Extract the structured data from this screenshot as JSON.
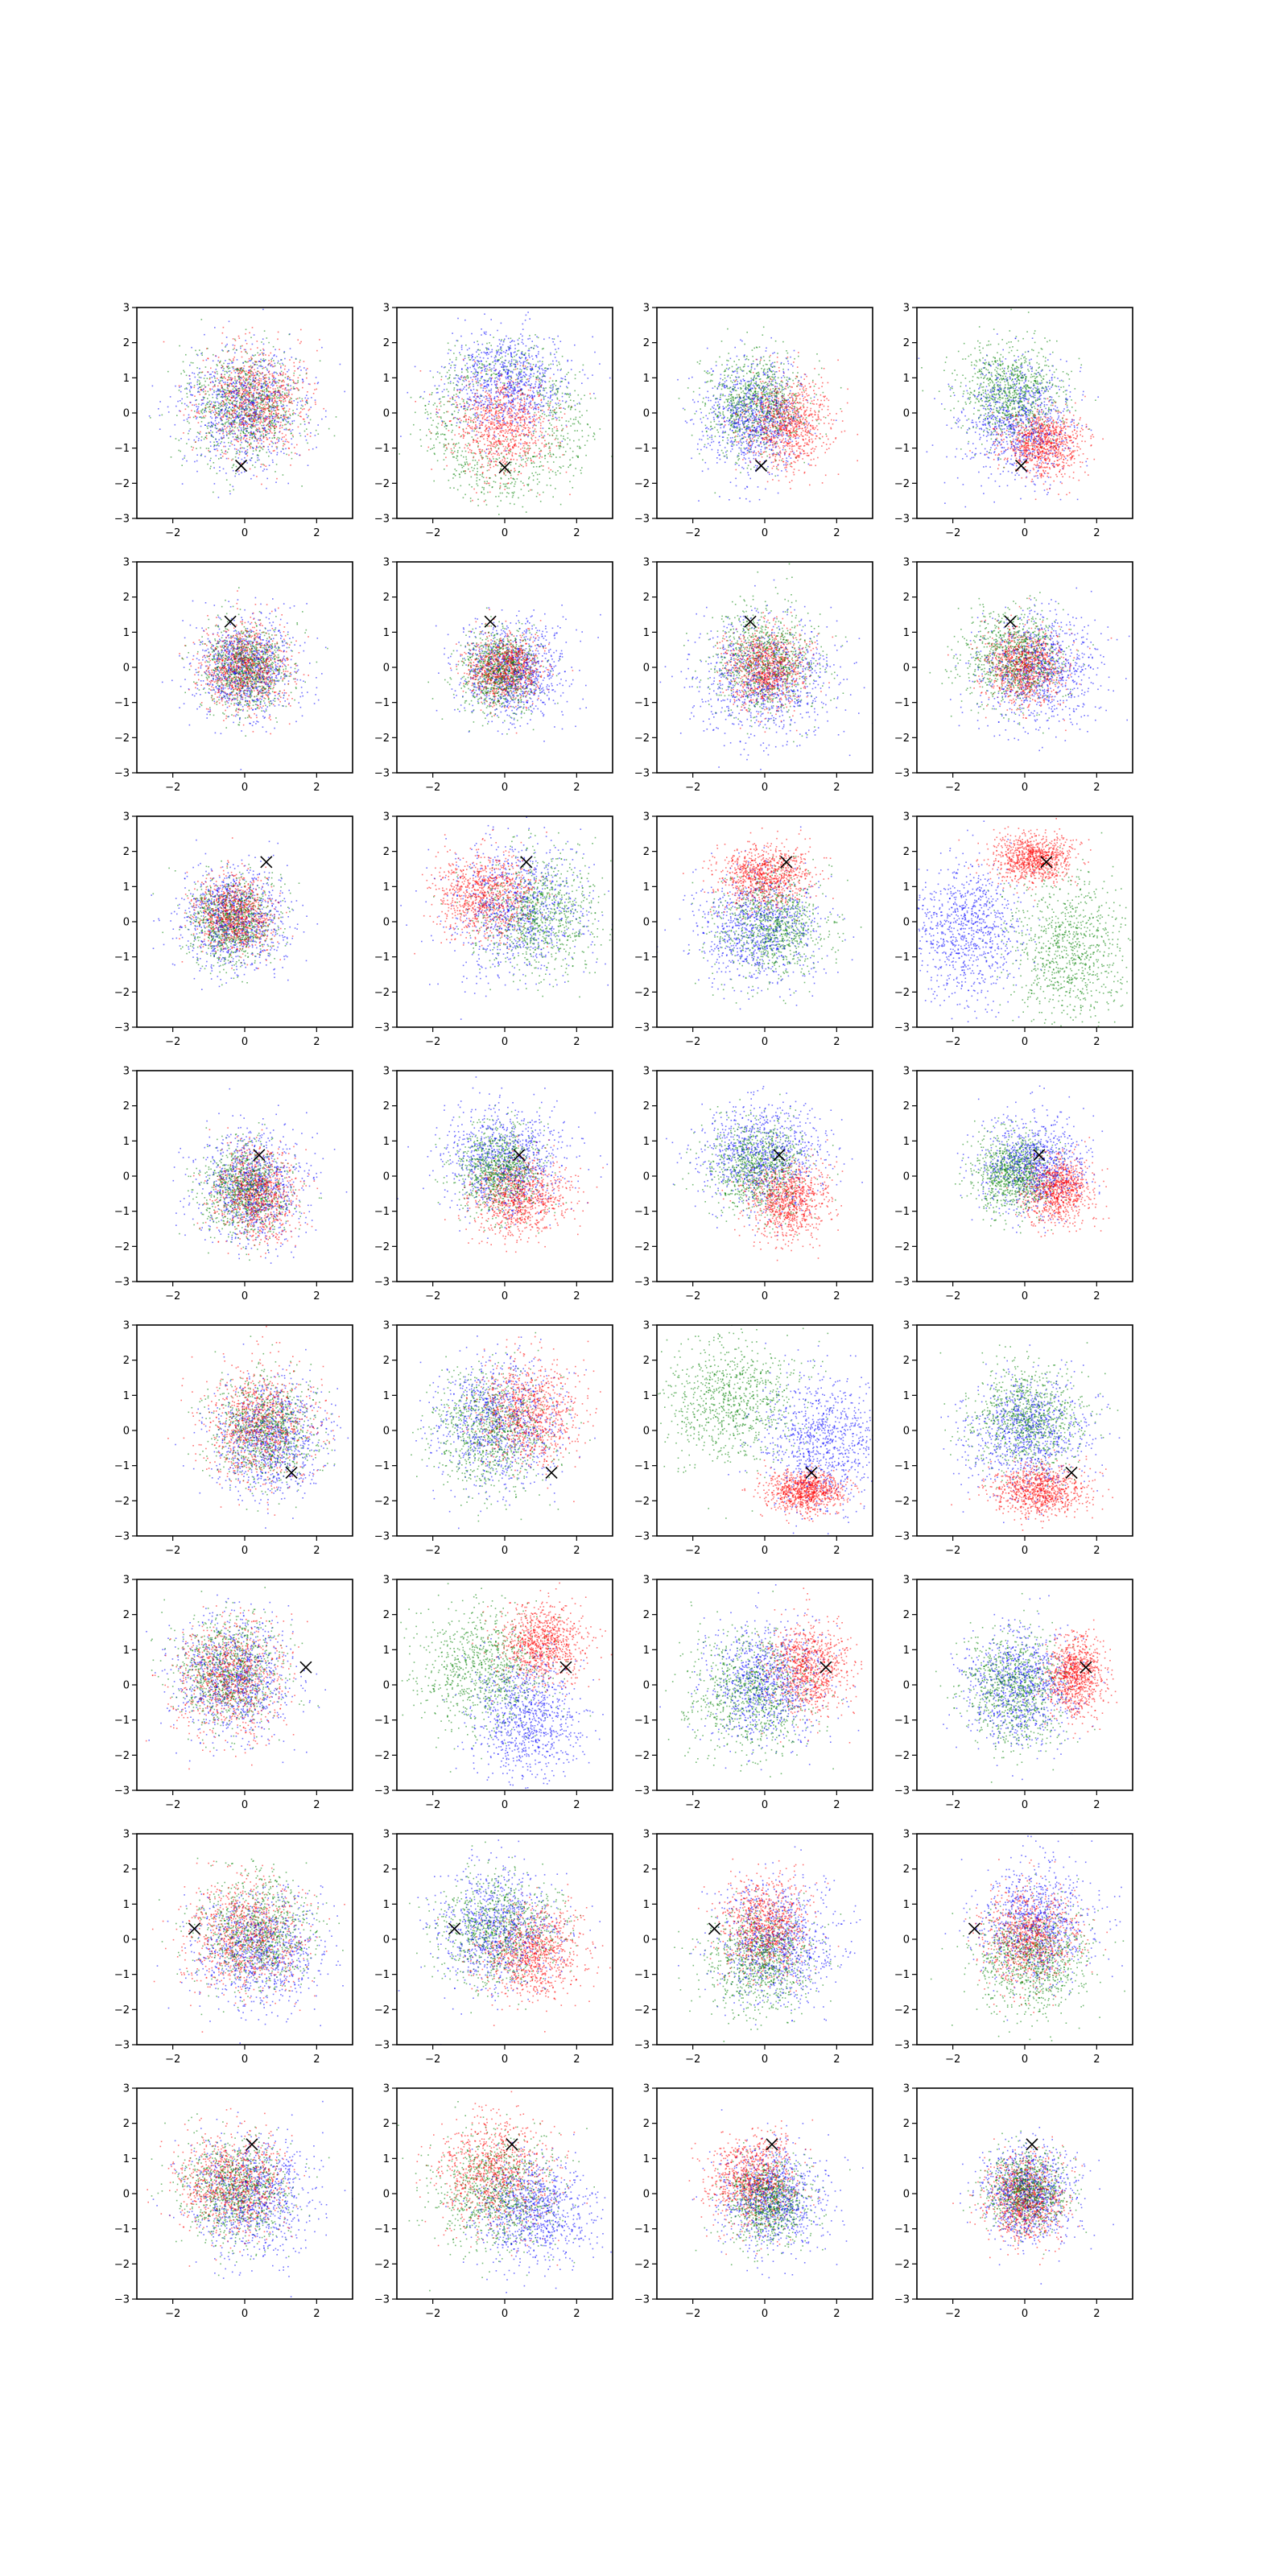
{
  "chart_data": {
    "type": "scatter",
    "grid": false,
    "legend": "none",
    "layout": {
      "rows": 8,
      "cols": 4
    },
    "xlim": [
      -3,
      3
    ],
    "ylim": [
      -3,
      3
    ],
    "xticks": [
      -2,
      0,
      2
    ],
    "yticks": [
      -3,
      -2,
      -1,
      0,
      1,
      2,
      3
    ],
    "xtick_labels": [
      "−2",
      "0",
      "2"
    ],
    "ytick_labels": [
      "−3",
      "−2",
      "−1",
      "0",
      "1",
      "2",
      "3"
    ],
    "title": "",
    "xlabel": "",
    "ylabel": "",
    "colors": {
      "c1": "#ff0000",
      "c2": "#008000",
      "c3": "#0000ff",
      "marker": "#000000"
    },
    "points_per_series": 900,
    "series_names": [
      "red",
      "green",
      "blue"
    ],
    "marker_style": "x",
    "panels": [
      {
        "row": 0,
        "col": 0,
        "marker": [
          -0.1,
          -1.5
        ],
        "red": {
          "c": [
            0.2,
            0.3
          ],
          "s": [
            0.75,
            0.75
          ]
        },
        "green": {
          "c": [
            0.0,
            0.2
          ],
          "s": [
            0.8,
            0.8
          ]
        },
        "blue": {
          "c": [
            0.0,
            0.2
          ],
          "s": [
            0.85,
            0.85
          ]
        }
      },
      {
        "row": 0,
        "col": 1,
        "marker": [
          0.0,
          -1.55
        ],
        "red": {
          "c": [
            -0.1,
            -0.3
          ],
          "s": [
            0.7,
            0.7
          ]
        },
        "green": {
          "c": [
            0.0,
            -0.2
          ],
          "s": [
            1.1,
            1.1
          ],
          "ring": 1.7
        },
        "blue": {
          "c": [
            0.1,
            0.9
          ],
          "s": [
            0.85,
            0.7
          ]
        }
      },
      {
        "row": 0,
        "col": 2,
        "marker": [
          -0.1,
          -1.5
        ],
        "red": {
          "c": [
            0.6,
            -0.3
          ],
          "s": [
            0.6,
            0.65
          ]
        },
        "green": {
          "c": [
            -0.3,
            0.3
          ],
          "s": [
            0.7,
            0.7
          ]
        },
        "blue": {
          "c": [
            -0.4,
            -0.1
          ],
          "s": [
            0.7,
            0.8
          ]
        }
      },
      {
        "row": 0,
        "col": 3,
        "marker": [
          -0.1,
          -1.5
        ],
        "red": {
          "c": [
            0.5,
            -0.9
          ],
          "s": [
            0.55,
            0.45
          ]
        },
        "green": {
          "c": [
            -0.4,
            0.6
          ],
          "s": [
            0.7,
            0.7
          ]
        },
        "blue": {
          "c": [
            -0.2,
            -0.2
          ],
          "s": [
            0.8,
            0.85
          ]
        }
      },
      {
        "row": 1,
        "col": 0,
        "marker": [
          -0.4,
          1.3
        ],
        "red": {
          "c": [
            0.0,
            0.0
          ],
          "s": [
            0.6,
            0.6
          ]
        },
        "green": {
          "c": [
            0.0,
            0.0
          ],
          "s": [
            0.6,
            0.6
          ]
        },
        "blue": {
          "c": [
            0.0,
            0.0
          ],
          "s": [
            0.7,
            0.7
          ]
        }
      },
      {
        "row": 1,
        "col": 1,
        "marker": [
          -0.4,
          1.3
        ],
        "red": {
          "c": [
            0.0,
            0.0
          ],
          "s": [
            0.5,
            0.45
          ]
        },
        "green": {
          "c": [
            -0.2,
            -0.1
          ],
          "s": [
            0.55,
            0.55
          ]
        },
        "blue": {
          "c": [
            0.2,
            -0.1
          ],
          "s": [
            0.75,
            0.7
          ]
        }
      },
      {
        "row": 1,
        "col": 2,
        "marker": [
          -0.4,
          1.3
        ],
        "red": {
          "c": [
            0.0,
            0.0
          ],
          "s": [
            0.55,
            0.55
          ]
        },
        "green": {
          "c": [
            0.0,
            0.2
          ],
          "s": [
            0.75,
            0.75
          ]
        },
        "blue": {
          "c": [
            0.0,
            -0.3
          ],
          "s": [
            0.95,
            0.85
          ]
        }
      },
      {
        "row": 1,
        "col": 3,
        "marker": [
          -0.4,
          1.3
        ],
        "red": {
          "c": [
            0.0,
            0.0
          ],
          "s": [
            0.55,
            0.55
          ]
        },
        "green": {
          "c": [
            -0.3,
            0.3
          ],
          "s": [
            0.7,
            0.7
          ]
        },
        "blue": {
          "c": [
            0.4,
            -0.1
          ],
          "s": [
            0.85,
            0.75
          ]
        }
      },
      {
        "row": 2,
        "col": 0,
        "marker": [
          0.6,
          1.7
        ],
        "red": {
          "c": [
            -0.3,
            0.2
          ],
          "s": [
            0.55,
            0.55
          ]
        },
        "green": {
          "c": [
            -0.4,
            0.0
          ],
          "s": [
            0.6,
            0.6
          ]
        },
        "blue": {
          "c": [
            -0.3,
            0.1
          ],
          "s": [
            0.75,
            0.75
          ]
        }
      },
      {
        "row": 2,
        "col": 1,
        "marker": [
          0.6,
          1.7
        ],
        "red": {
          "c": [
            -0.6,
            0.8
          ],
          "s": [
            0.65,
            0.6
          ]
        },
        "green": {
          "c": [
            0.9,
            0.2
          ],
          "s": [
            0.8,
            0.85
          ]
        },
        "blue": {
          "c": [
            0.3,
            0.4
          ],
          "s": [
            0.95,
            0.95
          ]
        }
      },
      {
        "row": 2,
        "col": 2,
        "marker": [
          0.6,
          1.7
        ],
        "red": {
          "c": [
            0.0,
            1.3
          ],
          "s": [
            0.65,
            0.45
          ]
        },
        "green": {
          "c": [
            0.2,
            -0.1
          ],
          "s": [
            0.75,
            0.75
          ]
        },
        "blue": {
          "c": [
            -0.2,
            -0.2
          ],
          "s": [
            0.85,
            0.8
          ]
        }
      },
      {
        "row": 2,
        "col": 3,
        "marker": [
          0.6,
          1.7
        ],
        "red": {
          "c": [
            0.2,
            1.8
          ],
          "s": [
            0.55,
            0.35
          ]
        },
        "green": {
          "c": [
            1.2,
            -0.8
          ],
          "s": [
            0.8,
            1.0
          ]
        },
        "blue": {
          "c": [
            -1.6,
            -0.3
          ],
          "s": [
            0.7,
            1.0
          ]
        }
      },
      {
        "row": 3,
        "col": 0,
        "marker": [
          0.4,
          0.6
        ],
        "red": {
          "c": [
            0.3,
            -0.5
          ],
          "s": [
            0.55,
            0.65
          ]
        },
        "green": {
          "c": [
            0.0,
            -0.4
          ],
          "s": [
            0.6,
            0.65
          ]
        },
        "blue": {
          "c": [
            0.2,
            -0.3
          ],
          "s": [
            0.75,
            0.8
          ]
        }
      },
      {
        "row": 3,
        "col": 1,
        "marker": [
          0.4,
          0.6
        ],
        "red": {
          "c": [
            0.4,
            -0.6
          ],
          "s": [
            0.65,
            0.55
          ]
        },
        "green": {
          "c": [
            -0.2,
            0.2
          ],
          "s": [
            0.6,
            0.6
          ]
        },
        "blue": {
          "c": [
            0.0,
            0.5
          ],
          "s": [
            0.85,
            0.75
          ]
        }
      },
      {
        "row": 3,
        "col": 2,
        "marker": [
          0.4,
          0.6
        ],
        "red": {
          "c": [
            0.6,
            -0.7
          ],
          "s": [
            0.55,
            0.55
          ]
        },
        "green": {
          "c": [
            -0.2,
            0.3
          ],
          "s": [
            0.65,
            0.65
          ]
        },
        "blue": {
          "c": [
            -0.1,
            0.6
          ],
          "s": [
            0.85,
            0.75
          ]
        }
      },
      {
        "row": 3,
        "col": 3,
        "marker": [
          0.4,
          0.6
        ],
        "red": {
          "c": [
            0.9,
            -0.4
          ],
          "s": [
            0.45,
            0.5
          ]
        },
        "green": {
          "c": [
            -0.3,
            0.1
          ],
          "s": [
            0.55,
            0.55
          ]
        },
        "blue": {
          "c": [
            0.2,
            0.4
          ],
          "s": [
            0.75,
            0.7
          ]
        }
      },
      {
        "row": 4,
        "col": 0,
        "marker": [
          1.3,
          -1.2
        ],
        "red": {
          "c": [
            0.4,
            0.2
          ],
          "s": [
            0.75,
            0.8
          ]
        },
        "green": {
          "c": [
            0.5,
            0.0
          ],
          "s": [
            0.7,
            0.75
          ]
        },
        "blue": {
          "c": [
            0.7,
            -0.2
          ],
          "s": [
            0.8,
            0.8
          ]
        }
      },
      {
        "row": 4,
        "col": 1,
        "marker": [
          1.3,
          -1.2
        ],
        "red": {
          "c": [
            0.6,
            0.5
          ],
          "s": [
            0.7,
            0.75
          ]
        },
        "green": {
          "c": [
            -0.4,
            0.0
          ],
          "s": [
            0.8,
            0.85
          ]
        },
        "blue": {
          "c": [
            -0.2,
            0.2
          ],
          "s": [
            0.9,
            0.9
          ]
        }
      },
      {
        "row": 4,
        "col": 2,
        "marker": [
          1.3,
          -1.2
        ],
        "red": {
          "c": [
            1.1,
            -1.7
          ],
          "s": [
            0.55,
            0.3
          ]
        },
        "green": {
          "c": [
            -0.9,
            0.9
          ],
          "s": [
            1.0,
            0.85
          ]
        },
        "blue": {
          "c": [
            1.6,
            -0.3
          ],
          "s": [
            0.8,
            0.95
          ]
        }
      },
      {
        "row": 4,
        "col": 3,
        "marker": [
          1.3,
          -1.2
        ],
        "red": {
          "c": [
            0.4,
            -1.7
          ],
          "s": [
            0.65,
            0.35
          ]
        },
        "green": {
          "c": [
            0.1,
            0.4
          ],
          "s": [
            0.75,
            0.75
          ]
        },
        "blue": {
          "c": [
            0.0,
            -0.1
          ],
          "s": [
            0.85,
            0.8
          ]
        }
      },
      {
        "row": 5,
        "col": 0,
        "marker": [
          1.7,
          0.5
        ],
        "red": {
          "c": [
            -0.4,
            0.2
          ],
          "s": [
            0.75,
            0.8
          ]
        },
        "green": {
          "c": [
            -0.5,
            0.4
          ],
          "s": [
            0.75,
            0.75
          ]
        },
        "blue": {
          "c": [
            -0.3,
            0.2
          ],
          "s": [
            0.85,
            0.85
          ]
        }
      },
      {
        "row": 5,
        "col": 1,
        "marker": [
          1.7,
          0.5
        ],
        "red": {
          "c": [
            1.0,
            1.2
          ],
          "s": [
            0.6,
            0.55
          ]
        },
        "green": {
          "c": [
            -0.6,
            0.4
          ],
          "s": [
            0.9,
            0.9
          ]
        },
        "blue": {
          "c": [
            0.6,
            -0.9
          ],
          "s": [
            0.75,
            0.85
          ]
        }
      },
      {
        "row": 5,
        "col": 2,
        "marker": [
          1.7,
          0.5
        ],
        "red": {
          "c": [
            1.2,
            0.5
          ],
          "s": [
            0.55,
            0.65
          ]
        },
        "green": {
          "c": [
            -0.4,
            -0.2
          ],
          "s": [
            0.85,
            0.85
          ]
        },
        "blue": {
          "c": [
            0.0,
            0.1
          ],
          "s": [
            0.8,
            0.85
          ]
        }
      },
      {
        "row": 5,
        "col": 3,
        "marker": [
          1.7,
          0.5
        ],
        "red": {
          "c": [
            1.4,
            0.3
          ],
          "s": [
            0.4,
            0.55
          ]
        },
        "green": {
          "c": [
            -0.3,
            -0.1
          ],
          "s": [
            0.7,
            0.8
          ]
        },
        "blue": {
          "c": [
            -0.1,
            0.0
          ],
          "s": [
            0.75,
            0.8
          ]
        }
      },
      {
        "row": 6,
        "col": 0,
        "marker": [
          -1.4,
          0.3
        ],
        "red": {
          "c": [
            0.0,
            0.1
          ],
          "s": [
            0.85,
            0.8
          ]
        },
        "green": {
          "c": [
            0.3,
            0.2
          ],
          "s": [
            0.85,
            0.8
          ]
        },
        "blue": {
          "c": [
            0.4,
            -0.3
          ],
          "s": [
            0.9,
            0.8
          ]
        }
      },
      {
        "row": 6,
        "col": 1,
        "marker": [
          -1.4,
          0.3
        ],
        "red": {
          "c": [
            0.8,
            -0.4
          ],
          "s": [
            0.7,
            0.65
          ]
        },
        "green": {
          "c": [
            -0.2,
            0.3
          ],
          "s": [
            0.8,
            0.8
          ]
        },
        "blue": {
          "c": [
            -0.2,
            0.3
          ],
          "s": [
            0.85,
            0.8
          ]
        }
      },
      {
        "row": 6,
        "col": 2,
        "marker": [
          -1.4,
          0.3
        ],
        "red": {
          "c": [
            0.0,
            0.4
          ],
          "s": [
            0.6,
            0.7
          ]
        },
        "green": {
          "c": [
            -0.1,
            -0.6
          ],
          "s": [
            0.75,
            0.75
          ]
        },
        "blue": {
          "c": [
            0.3,
            0.0
          ],
          "s": [
            0.85,
            0.85
          ]
        }
      },
      {
        "row": 6,
        "col": 3,
        "marker": [
          -1.4,
          0.3
        ],
        "red": {
          "c": [
            0.1,
            0.1
          ],
          "s": [
            0.65,
            0.7
          ]
        },
        "green": {
          "c": [
            0.2,
            -0.6
          ],
          "s": [
            0.8,
            0.8
          ]
        },
        "blue": {
          "c": [
            0.3,
            0.5
          ],
          "s": [
            0.8,
            0.8
          ]
        }
      },
      {
        "row": 7,
        "col": 0,
        "marker": [
          0.2,
          1.4
        ],
        "red": {
          "c": [
            -0.4,
            0.3
          ],
          "s": [
            0.7,
            0.7
          ]
        },
        "green": {
          "c": [
            -0.3,
            0.1
          ],
          "s": [
            0.75,
            0.75
          ]
        },
        "blue": {
          "c": [
            0.2,
            -0.1
          ],
          "s": [
            0.85,
            0.85
          ]
        }
      },
      {
        "row": 7,
        "col": 1,
        "marker": [
          0.2,
          1.4
        ],
        "red": {
          "c": [
            -0.3,
            0.6
          ],
          "s": [
            0.8,
            0.8
          ]
        },
        "green": {
          "c": [
            -0.2,
            0.0
          ],
          "s": [
            0.85,
            0.85
          ]
        },
        "blue": {
          "c": [
            0.8,
            -0.5
          ],
          "s": [
            0.8,
            0.75
          ]
        }
      },
      {
        "row": 7,
        "col": 2,
        "marker": [
          0.2,
          1.4
        ],
        "red": {
          "c": [
            -0.3,
            0.4
          ],
          "s": [
            0.6,
            0.65
          ]
        },
        "green": {
          "c": [
            0.1,
            -0.2
          ],
          "s": [
            0.6,
            0.6
          ]
        },
        "blue": {
          "c": [
            0.2,
            -0.1
          ],
          "s": [
            0.75,
            0.75
          ]
        }
      },
      {
        "row": 7,
        "col": 3,
        "marker": [
          0.2,
          1.4
        ],
        "red": {
          "c": [
            0.0,
            -0.1
          ],
          "s": [
            0.55,
            0.6
          ]
        },
        "green": {
          "c": [
            0.0,
            0.1
          ],
          "s": [
            0.55,
            0.55
          ]
        },
        "blue": {
          "c": [
            0.1,
            0.0
          ],
          "s": [
            0.65,
            0.65
          ]
        }
      }
    ]
  }
}
